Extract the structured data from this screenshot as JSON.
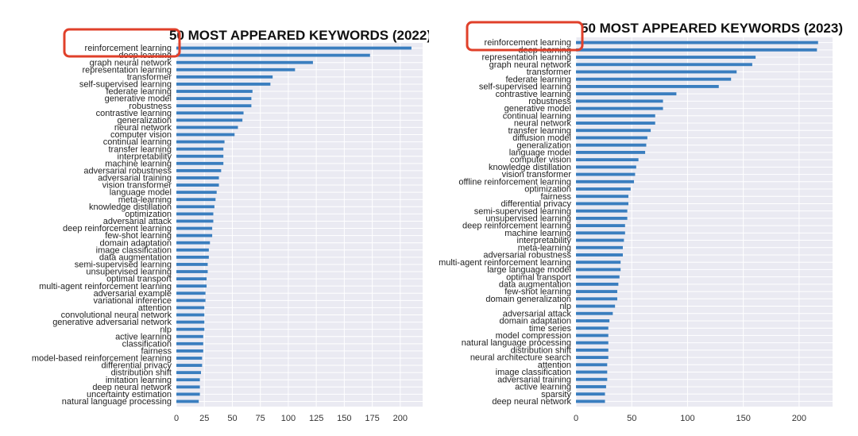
{
  "chart_data": [
    {
      "type": "bar",
      "orientation": "horizontal",
      "title": "50 MOST APPEARED KEYWORDS (2022)",
      "xlim": [
        0,
        220
      ],
      "xticks": [
        0,
        25,
        50,
        75,
        100,
        125,
        150,
        175,
        200
      ],
      "grid": true,
      "highlight_color": "#e0402a",
      "bar_color": "#3a7ebf",
      "categories": [
        "reinforcement learning",
        "deep learning",
        "graph neural network",
        "representation learning",
        "transformer",
        "self-supervised learning",
        "federate learning",
        "generative model",
        "robustness",
        "contrastive learning",
        "generalization",
        "neural network",
        "computer vision",
        "continual learning",
        "transfer learning",
        "interpretability",
        "machine learning",
        "adversarial robustness",
        "adversarial training",
        "vision transformer",
        "language model",
        "meta-learning",
        "knowledge distillation",
        "optimization",
        "adversarial attack",
        "deep reinforcement learning",
        "few-shot learning",
        "domain adaptation",
        "image classification",
        "data augmentation",
        "semi-supervised learning",
        "unsupervised learning",
        "optimal transport",
        "multi-agent reinforcement learning",
        "adversarial example",
        "variational inference",
        "attention",
        "convolutional neural network",
        "generative adversarial network",
        "nlp",
        "active learning",
        "classification",
        "fairness",
        "model-based reinforcement learning",
        "differential privacy",
        "distribution shift",
        "imitation learning",
        "deep neural network",
        "uncertainty estimation",
        "natural language processing"
      ],
      "values": [
        210,
        173,
        122,
        106,
        86,
        84,
        68,
        67,
        67,
        60,
        59,
        55,
        52,
        43,
        42,
        42,
        42,
        40,
        38,
        38,
        36,
        35,
        34,
        33,
        33,
        32,
        32,
        30,
        29,
        29,
        28,
        28,
        27,
        27,
        26,
        26,
        25,
        25,
        25,
        25,
        24,
        24,
        24,
        23,
        23,
        22,
        21,
        21,
        21,
        20
      ]
    },
    {
      "type": "bar",
      "orientation": "horizontal",
      "title": "50 MOST APPEARED KEYWORDS (2023)",
      "xlim": [
        0,
        230
      ],
      "xticks": [
        0,
        50,
        100,
        150,
        200
      ],
      "grid": true,
      "highlight_color": "#e0402a",
      "bar_color": "#3a7ebf",
      "categories": [
        "reinforcement learning",
        "deep learning",
        "representation learning",
        "graph neural network",
        "transformer",
        "federate learning",
        "self-supervised learning",
        "contrastive learning",
        "robustness",
        "generative model",
        "continual learning",
        "neural network",
        "transfer learning",
        "diffusion model",
        "generalization",
        "language model",
        "computer vision",
        "knowledge distillation",
        "vision transformer",
        "offline reinforcement learning",
        "optimization",
        "fairness",
        "differential privacy",
        "semi-supervised learning",
        "unsupervised learning",
        "deep reinforcement learning",
        "machine learning",
        "interpretability",
        "meta-learning",
        "adversarial robustness",
        "multi-agent reinforcement learning",
        "large language model",
        "optimal transport",
        "data augmentation",
        "few-shot learning",
        "domain generalization",
        "nlp",
        "adversarial attack",
        "domain adaptation",
        "time series",
        "model compression",
        "natural language processing",
        "distribution shift",
        "neural architecture search",
        "attention",
        "image classification",
        "adversarial training",
        "active learning",
        "sparsity",
        "deep neural network"
      ],
      "values": [
        217,
        216,
        161,
        158,
        144,
        139,
        128,
        90,
        78,
        78,
        71,
        71,
        67,
        64,
        63,
        62,
        56,
        54,
        53,
        52,
        49,
        47,
        47,
        46,
        46,
        44,
        44,
        43,
        42,
        42,
        40,
        40,
        39,
        38,
        37,
        37,
        35,
        33,
        30,
        29,
        29,
        29,
        29,
        29,
        28,
        28,
        28,
        27,
        26,
        26
      ]
    }
  ]
}
